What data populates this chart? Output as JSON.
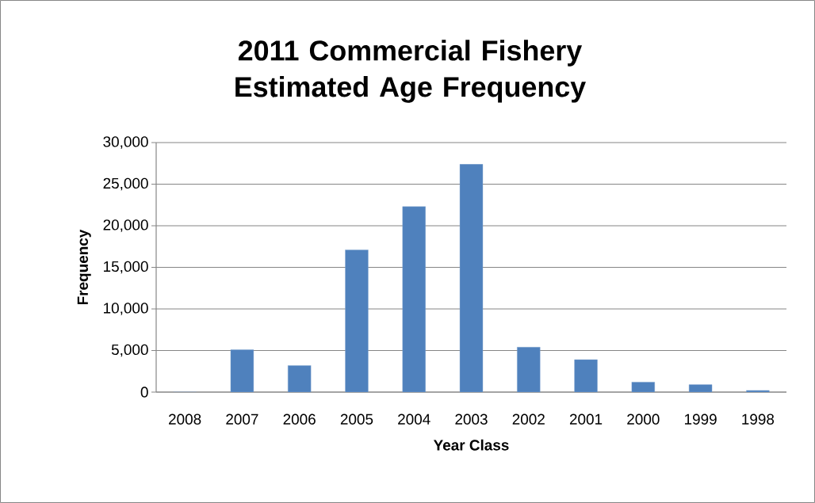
{
  "chart_data": {
    "type": "bar",
    "title": "2011 Commercial Fishery Estimated Age Frequency",
    "xlabel": "Year Class",
    "ylabel": "Frequency",
    "categories": [
      "2008",
      "2007",
      "2006",
      "2005",
      "2004",
      "2003",
      "2002",
      "2001",
      "2000",
      "1999",
      "1998"
    ],
    "values": [
      0,
      5100,
      3200,
      17100,
      22300,
      27400,
      5400,
      3900,
      1200,
      900,
      200
    ],
    "color": "#4f81bd",
    "ylim": [
      0,
      30000
    ],
    "yticks": [
      {
        "value": 0,
        "label": "0"
      },
      {
        "value": 5000,
        "label": "5,000"
      },
      {
        "value": 10000,
        "label": "10,000"
      },
      {
        "value": 15000,
        "label": "15,000"
      },
      {
        "value": 20000,
        "label": "20,000"
      },
      {
        "value": 25000,
        "label": "25,000"
      },
      {
        "value": 30000,
        "label": "30,000"
      }
    ],
    "grid": "y"
  }
}
